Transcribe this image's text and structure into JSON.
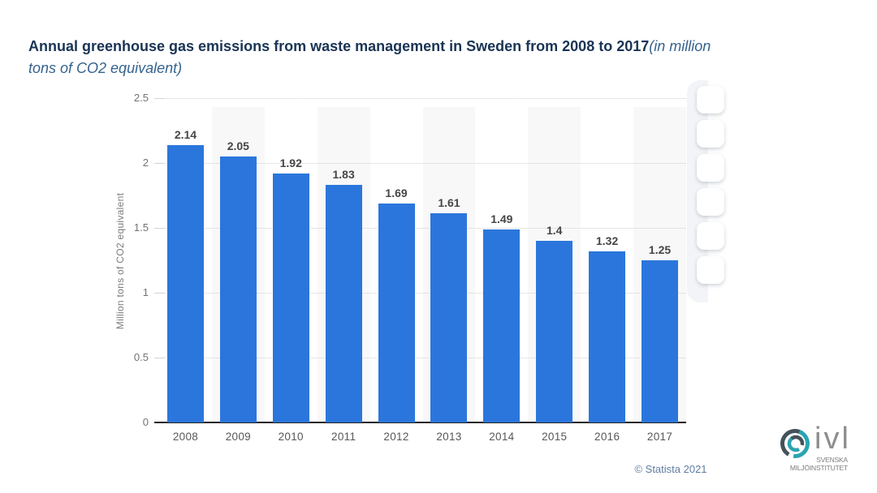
{
  "title": {
    "bold": "Annual greenhouse gas emissions from waste management in Sweden from 2008 to 2017",
    "italic_line1": "(in million",
    "italic_line2": "tons of CO2 equivalent)"
  },
  "chart_data": {
    "type": "bar",
    "title": "Annual greenhouse gas emissions from waste management in Sweden from 2008 to 2017 (in million tons of CO2 equivalent)",
    "categories": [
      "2008",
      "2009",
      "2010",
      "2011",
      "2012",
      "2013",
      "2014",
      "2015",
      "2016",
      "2017"
    ],
    "values": [
      2.14,
      2.05,
      1.92,
      1.83,
      1.69,
      1.61,
      1.49,
      1.4,
      1.32,
      1.25
    ],
    "value_labels": [
      "2.14",
      "2.05",
      "1.92",
      "1.83",
      "1.69",
      "1.61",
      "1.49",
      "1.4",
      "1.32",
      "1.25"
    ],
    "xlabel": "",
    "ylabel": "Million tons of CO2 equivalent",
    "ylim": [
      0,
      2.5
    ],
    "yticks": [
      0,
      0.5,
      1,
      1.5,
      2,
      2.5
    ],
    "ytick_labels": [
      "0",
      "0.5",
      "1",
      "1.5",
      "2",
      "2.5"
    ],
    "grid": "horizontal-dotted",
    "legend": "none",
    "bar_color": "#2b76dc",
    "band_color": "#f8f8f9"
  },
  "footer": {
    "copyright": "© Statista 2021"
  },
  "logo": {
    "name": "ivl",
    "subtitle1": "SVENSKA",
    "subtitle2": "MILJÖINSTITUTET",
    "teal": "#2aa4b2",
    "slate": "#44525b"
  },
  "toolbar": {
    "visible_buttons": 6
  }
}
